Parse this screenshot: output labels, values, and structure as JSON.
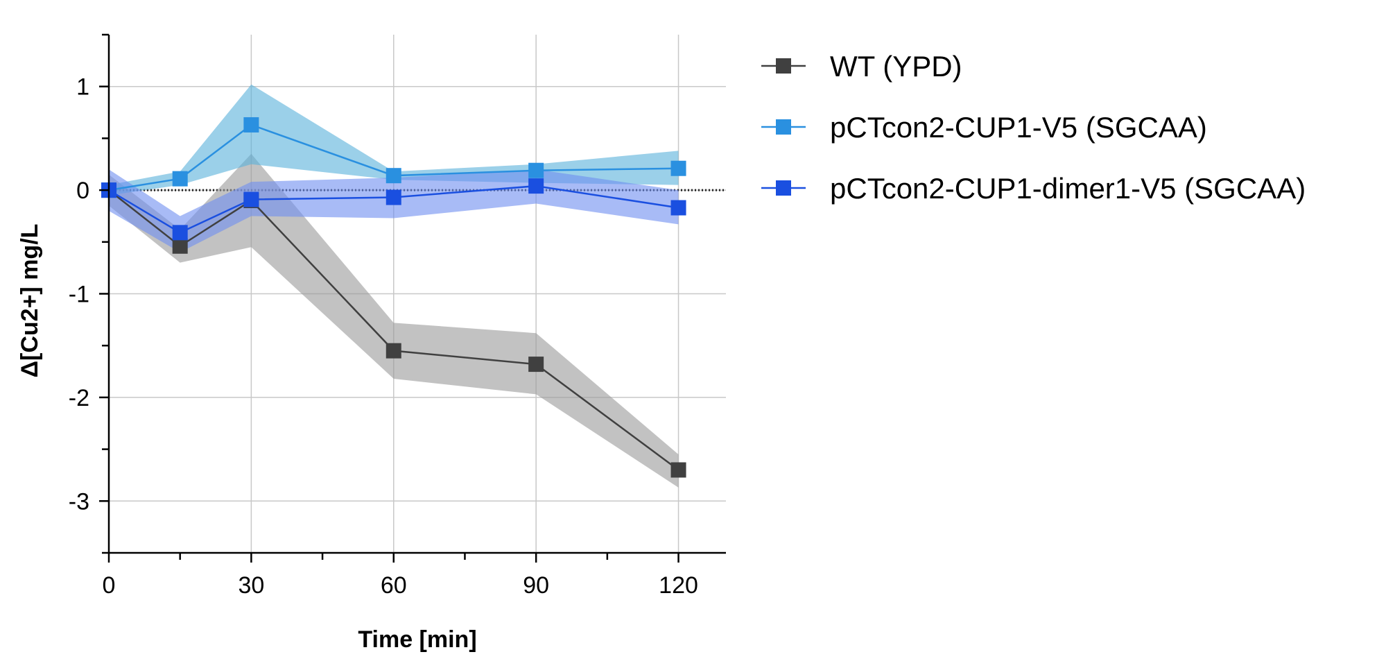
{
  "chart_data": {
    "type": "line",
    "xlabel": "Time [min]",
    "ylabel": "Δ[Cu2+] mg/L",
    "xlim": [
      0,
      130
    ],
    "ylim": [
      -3.5,
      1.5
    ],
    "x_ticks": [
      0,
      30,
      60,
      90,
      120
    ],
    "y_ticks": [
      1,
      0,
      -1,
      -2,
      -3
    ],
    "grid": true,
    "reference_line": {
      "y": 0,
      "style": "dotted"
    },
    "legend_position": "right",
    "x": [
      0,
      15,
      30,
      60,
      90,
      120
    ],
    "series": [
      {
        "name": "WT (YPD)",
        "color": "#404040",
        "band_color": "#9a9a9a",
        "values": [
          0,
          -0.54,
          -0.1,
          -1.55,
          -1.68,
          -2.7
        ],
        "lower": [
          -0.15,
          -0.7,
          -0.55,
          -1.82,
          -1.97,
          -2.87
        ],
        "upper": [
          0.15,
          -0.38,
          0.35,
          -1.28,
          -1.38,
          -2.55
        ]
      },
      {
        "name": "pCTcon2-CUP1-V5 (SGCAA)",
        "color": "#2a90e0",
        "band_color": "#58b0da",
        "values": [
          0,
          0.11,
          0.63,
          0.14,
          0.19,
          0.21
        ],
        "lower": [
          -0.05,
          0.05,
          0.25,
          0.1,
          0.07,
          0.05
        ],
        "upper": [
          0.05,
          0.18,
          1.02,
          0.18,
          0.25,
          0.38
        ]
      },
      {
        "name": "pCTcon2-CUP1-dimer1-V5 (SGCAA)",
        "color": "#1a4fe0",
        "band_color": "#6e8ef0",
        "values": [
          0,
          -0.41,
          -0.09,
          -0.07,
          0.04,
          -0.17
        ],
        "lower": [
          -0.2,
          -0.6,
          -0.25,
          -0.27,
          -0.13,
          -0.33
        ],
        "upper": [
          0.2,
          -0.25,
          0.08,
          0.12,
          0.2,
          0.0
        ]
      }
    ]
  }
}
